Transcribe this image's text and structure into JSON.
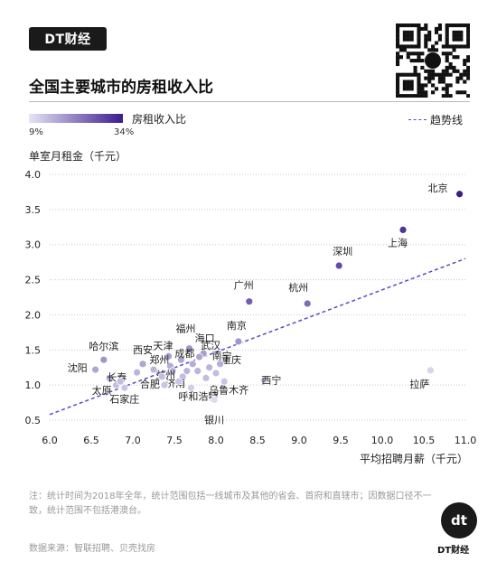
{
  "brand": {
    "name": "DT财经",
    "logo_mark": "dt"
  },
  "title": "全国主要城市的房租收入比",
  "legend": {
    "color_label": "房租收入比",
    "min_label": "9%",
    "max_label": "34%",
    "trend_label": "趋势线",
    "color_low": "#e6e4f5",
    "color_high": "#3b1b8f"
  },
  "note": "注：统计时间为2018年全年，统计范围包括一线城市及其他的省会、首府和直辖市；因数据口径不一致，统计范围不包括港澳台。",
  "source": "数据来源：智联招聘、贝壳找房",
  "colors": {
    "trend": "#5a4bc9",
    "grid": "#c8c8c8",
    "label": "#222222"
  },
  "chart_data": {
    "type": "scatter",
    "title": "全国主要城市的房租收入比",
    "xlabel": "平均招聘月薪（千元）",
    "ylabel": "单室月租金（千元）",
    "xlim": [
      6.0,
      11.0
    ],
    "ylim": [
      0.5,
      4.0
    ],
    "xticks": [
      "6.0",
      "6.5",
      "7.0",
      "7.5",
      "8.0",
      "8.5",
      "9.0",
      "9.5",
      "10.0",
      "10.5",
      "11.0"
    ],
    "yticks": [
      "0.5",
      "1.0",
      "1.5",
      "2.0",
      "2.5",
      "3.0",
      "3.5",
      "4.0"
    ],
    "grid": "horizontal",
    "trendline": {
      "style": "dashed",
      "points": [
        [
          6.0,
          0.58
        ],
        [
          11.0,
          2.8
        ]
      ]
    },
    "points": [
      {
        "label": "北京",
        "x": 10.93,
        "y": 3.72,
        "ratio": 34
      },
      {
        "label": "上海",
        "x": 10.25,
        "y": 3.21,
        "ratio": 31
      },
      {
        "label": "深圳",
        "x": 9.48,
        "y": 2.7,
        "ratio": 28
      },
      {
        "label": "杭州",
        "x": 9.1,
        "y": 2.16,
        "ratio": 24
      },
      {
        "label": "广州",
        "x": 8.4,
        "y": 2.19,
        "ratio": 26
      },
      {
        "label": "南京",
        "x": 8.27,
        "y": 1.62,
        "ratio": 19
      },
      {
        "label": "拉萨",
        "x": 10.58,
        "y": 1.21,
        "ratio": 11
      },
      {
        "label": "西宁",
        "x": 8.58,
        "y": 1.07,
        "ratio": 12
      },
      {
        "label": "乌鲁木齐",
        "x": 8.1,
        "y": 1.05,
        "ratio": 13
      },
      {
        "label": "重庆",
        "x": 8.0,
        "y": 1.17,
        "ratio": 14
      },
      {
        "label": "南宁",
        "x": 7.92,
        "y": 1.25,
        "ratio": 15
      },
      {
        "label": "武汉",
        "x": 7.85,
        "y": 1.45,
        "ratio": 18
      },
      {
        "label": "海口",
        "x": 7.8,
        "y": 1.4,
        "ratio": 17
      },
      {
        "label": "福州",
        "x": 7.68,
        "y": 1.52,
        "ratio": 19
      },
      {
        "label": "成都",
        "x": 7.58,
        "y": 1.36,
        "ratio": 17
      },
      {
        "label": "天津",
        "x": 7.43,
        "y": 1.41,
        "ratio": 18
      },
      {
        "label": "郑州",
        "x": 7.45,
        "y": 1.27,
        "ratio": 16
      },
      {
        "label": "西安",
        "x": 7.12,
        "y": 1.3,
        "ratio": 17
      },
      {
        "label": "兰州",
        "x": 7.48,
        "y": 1.2,
        "ratio": 15
      },
      {
        "label": "济南",
        "x": 7.6,
        "y": 1.12,
        "ratio": 14
      },
      {
        "label": "合肥",
        "x": 7.38,
        "y": 1.0,
        "ratio": 13
      },
      {
        "label": "呼和浩特",
        "x": 7.7,
        "y": 0.96,
        "ratio": 12
      },
      {
        "label": "银川",
        "x": 7.98,
        "y": 0.79,
        "ratio": 10
      },
      {
        "label": "哈尔滨",
        "x": 6.65,
        "y": 1.36,
        "ratio": 19
      },
      {
        "label": "沈阳",
        "x": 6.55,
        "y": 1.22,
        "ratio": 17
      },
      {
        "label": "长春",
        "x": 6.72,
        "y": 1.1,
        "ratio": 16
      },
      {
        "label": "太原",
        "x": 6.8,
        "y": 1.0,
        "ratio": 14
      },
      {
        "label": "石家庄",
        "x": 6.9,
        "y": 0.96,
        "ratio": 13
      },
      {
        "label": "",
        "x": 7.05,
        "y": 1.18,
        "ratio": 15
      },
      {
        "label": "",
        "x": 7.35,
        "y": 1.12,
        "ratio": 14
      },
      {
        "label": "",
        "x": 7.55,
        "y": 1.05,
        "ratio": 13
      },
      {
        "label": "",
        "x": 7.65,
        "y": 1.2,
        "ratio": 15
      },
      {
        "label": "",
        "x": 7.72,
        "y": 1.3,
        "ratio": 16
      },
      {
        "label": "",
        "x": 7.88,
        "y": 1.1,
        "ratio": 14
      },
      {
        "label": "",
        "x": 8.05,
        "y": 1.3,
        "ratio": 16
      },
      {
        "label": "",
        "x": 7.25,
        "y": 1.22,
        "ratio": 15
      },
      {
        "label": "",
        "x": 7.78,
        "y": 1.2,
        "ratio": 15
      },
      {
        "label": "",
        "x": 6.85,
        "y": 1.05,
        "ratio": 14
      }
    ]
  }
}
